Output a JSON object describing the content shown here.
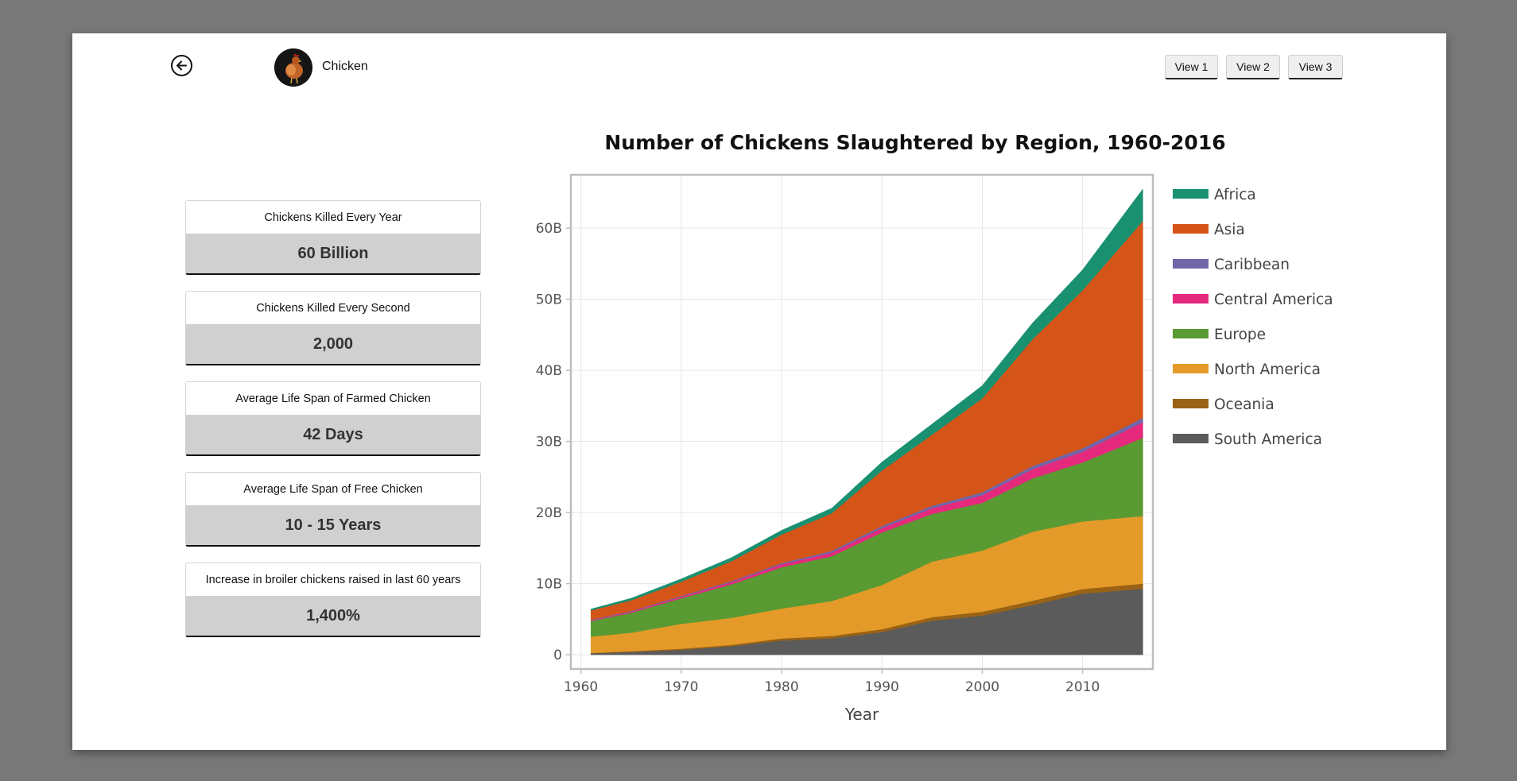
{
  "header": {
    "animal_name": "Chicken",
    "avatar_icon": "chicken-avatar",
    "back_icon": "arrow-left-circle-icon",
    "views": [
      "View 1",
      "View 2",
      "View 3"
    ]
  },
  "stats": [
    {
      "label": "Chickens Killed Every Year",
      "value": "60 Billion"
    },
    {
      "label": "Chickens Killed Every Second",
      "value": "2,000"
    },
    {
      "label": "Average Life Span of Farmed Chicken",
      "value": "42 Days"
    },
    {
      "label": "Average Life Span of Free Chicken",
      "value": "10 - 15 Years"
    },
    {
      "label": "Increase in broiler chickens raised in last 60 years",
      "value": "1,400%"
    }
  ],
  "chart_data": {
    "type": "area",
    "stacked": true,
    "title": "Number of Chickens Slaughtered by Region, 1960-2016",
    "xlabel": "Year",
    "ylabel": "",
    "xlim": [
      1959,
      2017
    ],
    "ylim": [
      -2,
      67.5
    ],
    "y_unit": "B",
    "grid": true,
    "legend_position": "right",
    "x_ticks": [
      1960,
      1970,
      1980,
      1990,
      2000,
      2010
    ],
    "y_ticks": [
      0,
      10,
      20,
      30,
      40,
      50,
      60
    ],
    "y_tick_labels": [
      "0",
      "10B",
      "20B",
      "30B",
      "40B",
      "50B",
      "60B"
    ],
    "x": [
      1961,
      1965,
      1970,
      1975,
      1980,
      1985,
      1990,
      1995,
      2000,
      2005,
      2010,
      2016
    ],
    "series": [
      {
        "name": "South America",
        "color": "#5b5b5b",
        "values": [
          0.2,
          0.4,
          0.7,
          1.2,
          2.0,
          2.3,
          3.2,
          4.8,
          5.5,
          7.0,
          8.6,
          9.3
        ]
      },
      {
        "name": "Oceania",
        "color": "#996215",
        "values": [
          0.05,
          0.1,
          0.15,
          0.2,
          0.3,
          0.35,
          0.4,
          0.5,
          0.55,
          0.6,
          0.65,
          0.7
        ]
      },
      {
        "name": "North America",
        "color": "#e49a28",
        "values": [
          2.3,
          2.6,
          3.5,
          3.8,
          4.2,
          4.9,
          6.2,
          7.8,
          8.6,
          9.7,
          9.5,
          9.5
        ]
      },
      {
        "name": "Europe",
        "color": "#5a9a32",
        "values": [
          2.2,
          2.8,
          3.6,
          4.7,
          5.8,
          6.3,
          7.4,
          6.7,
          6.7,
          7.5,
          8.3,
          11.0
        ]
      },
      {
        "name": "Central America",
        "color": "#e5297c",
        "values": [
          0.1,
          0.15,
          0.2,
          0.3,
          0.4,
          0.5,
          0.6,
          0.8,
          1.1,
          1.3,
          1.5,
          2.2
        ]
      },
      {
        "name": "Caribbean",
        "color": "#7066a8",
        "values": [
          0.08,
          0.1,
          0.12,
          0.15,
          0.2,
          0.25,
          0.3,
          0.35,
          0.4,
          0.45,
          0.5,
          0.6
        ]
      },
      {
        "name": "Asia",
        "color": "#d55418",
        "values": [
          1.3,
          1.5,
          2.0,
          2.8,
          4.0,
          5.3,
          7.8,
          10.0,
          13.2,
          17.8,
          22.2,
          27.7
        ]
      },
      {
        "name": "Africa",
        "color": "#199070",
        "values": [
          0.2,
          0.3,
          0.4,
          0.5,
          0.6,
          0.7,
          1.2,
          1.5,
          1.8,
          2.3,
          2.9,
          4.5
        ]
      }
    ],
    "legend_order": [
      "Africa",
      "Asia",
      "Caribbean",
      "Central America",
      "Europe",
      "North America",
      "Oceania",
      "South America"
    ]
  }
}
